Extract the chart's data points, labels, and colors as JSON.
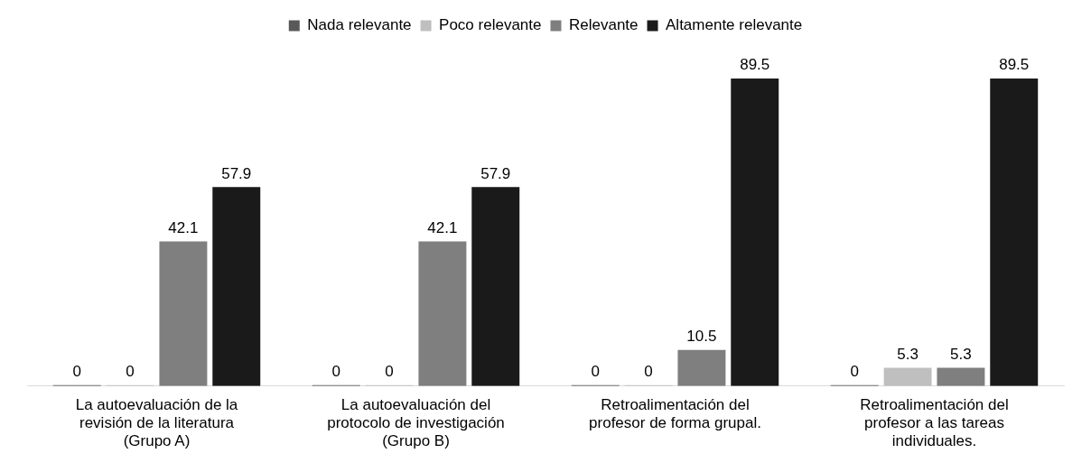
{
  "chart_data": {
    "type": "bar",
    "categories": [
      "La autoevaluación de la revisión de la literatura (Grupo A)",
      "La autoevaluación del protocolo de investigación (Grupo B)",
      "Retroalimentación del profesor de forma grupal.",
      "Retroalimentación del profesor a las tareas individuales."
    ],
    "series": [
      {
        "name": "Nada relevante",
        "color": "#595959",
        "values": [
          0,
          0,
          0,
          0
        ]
      },
      {
        "name": "Poco relevante",
        "color": "#bfbfbf",
        "values": [
          0,
          0,
          0,
          5.3
        ]
      },
      {
        "name": "Relevante",
        "color": "#7f7f7f",
        "values": [
          42.1,
          42.1,
          10.5,
          5.3
        ]
      },
      {
        "name": "Altamente relevante",
        "color": "#1a1a1a",
        "values": [
          57.9,
          57.9,
          89.5,
          89.5
        ]
      }
    ],
    "tick_labels": "x",
    "grid": false,
    "legend": "top",
    "data_labels": true
  }
}
